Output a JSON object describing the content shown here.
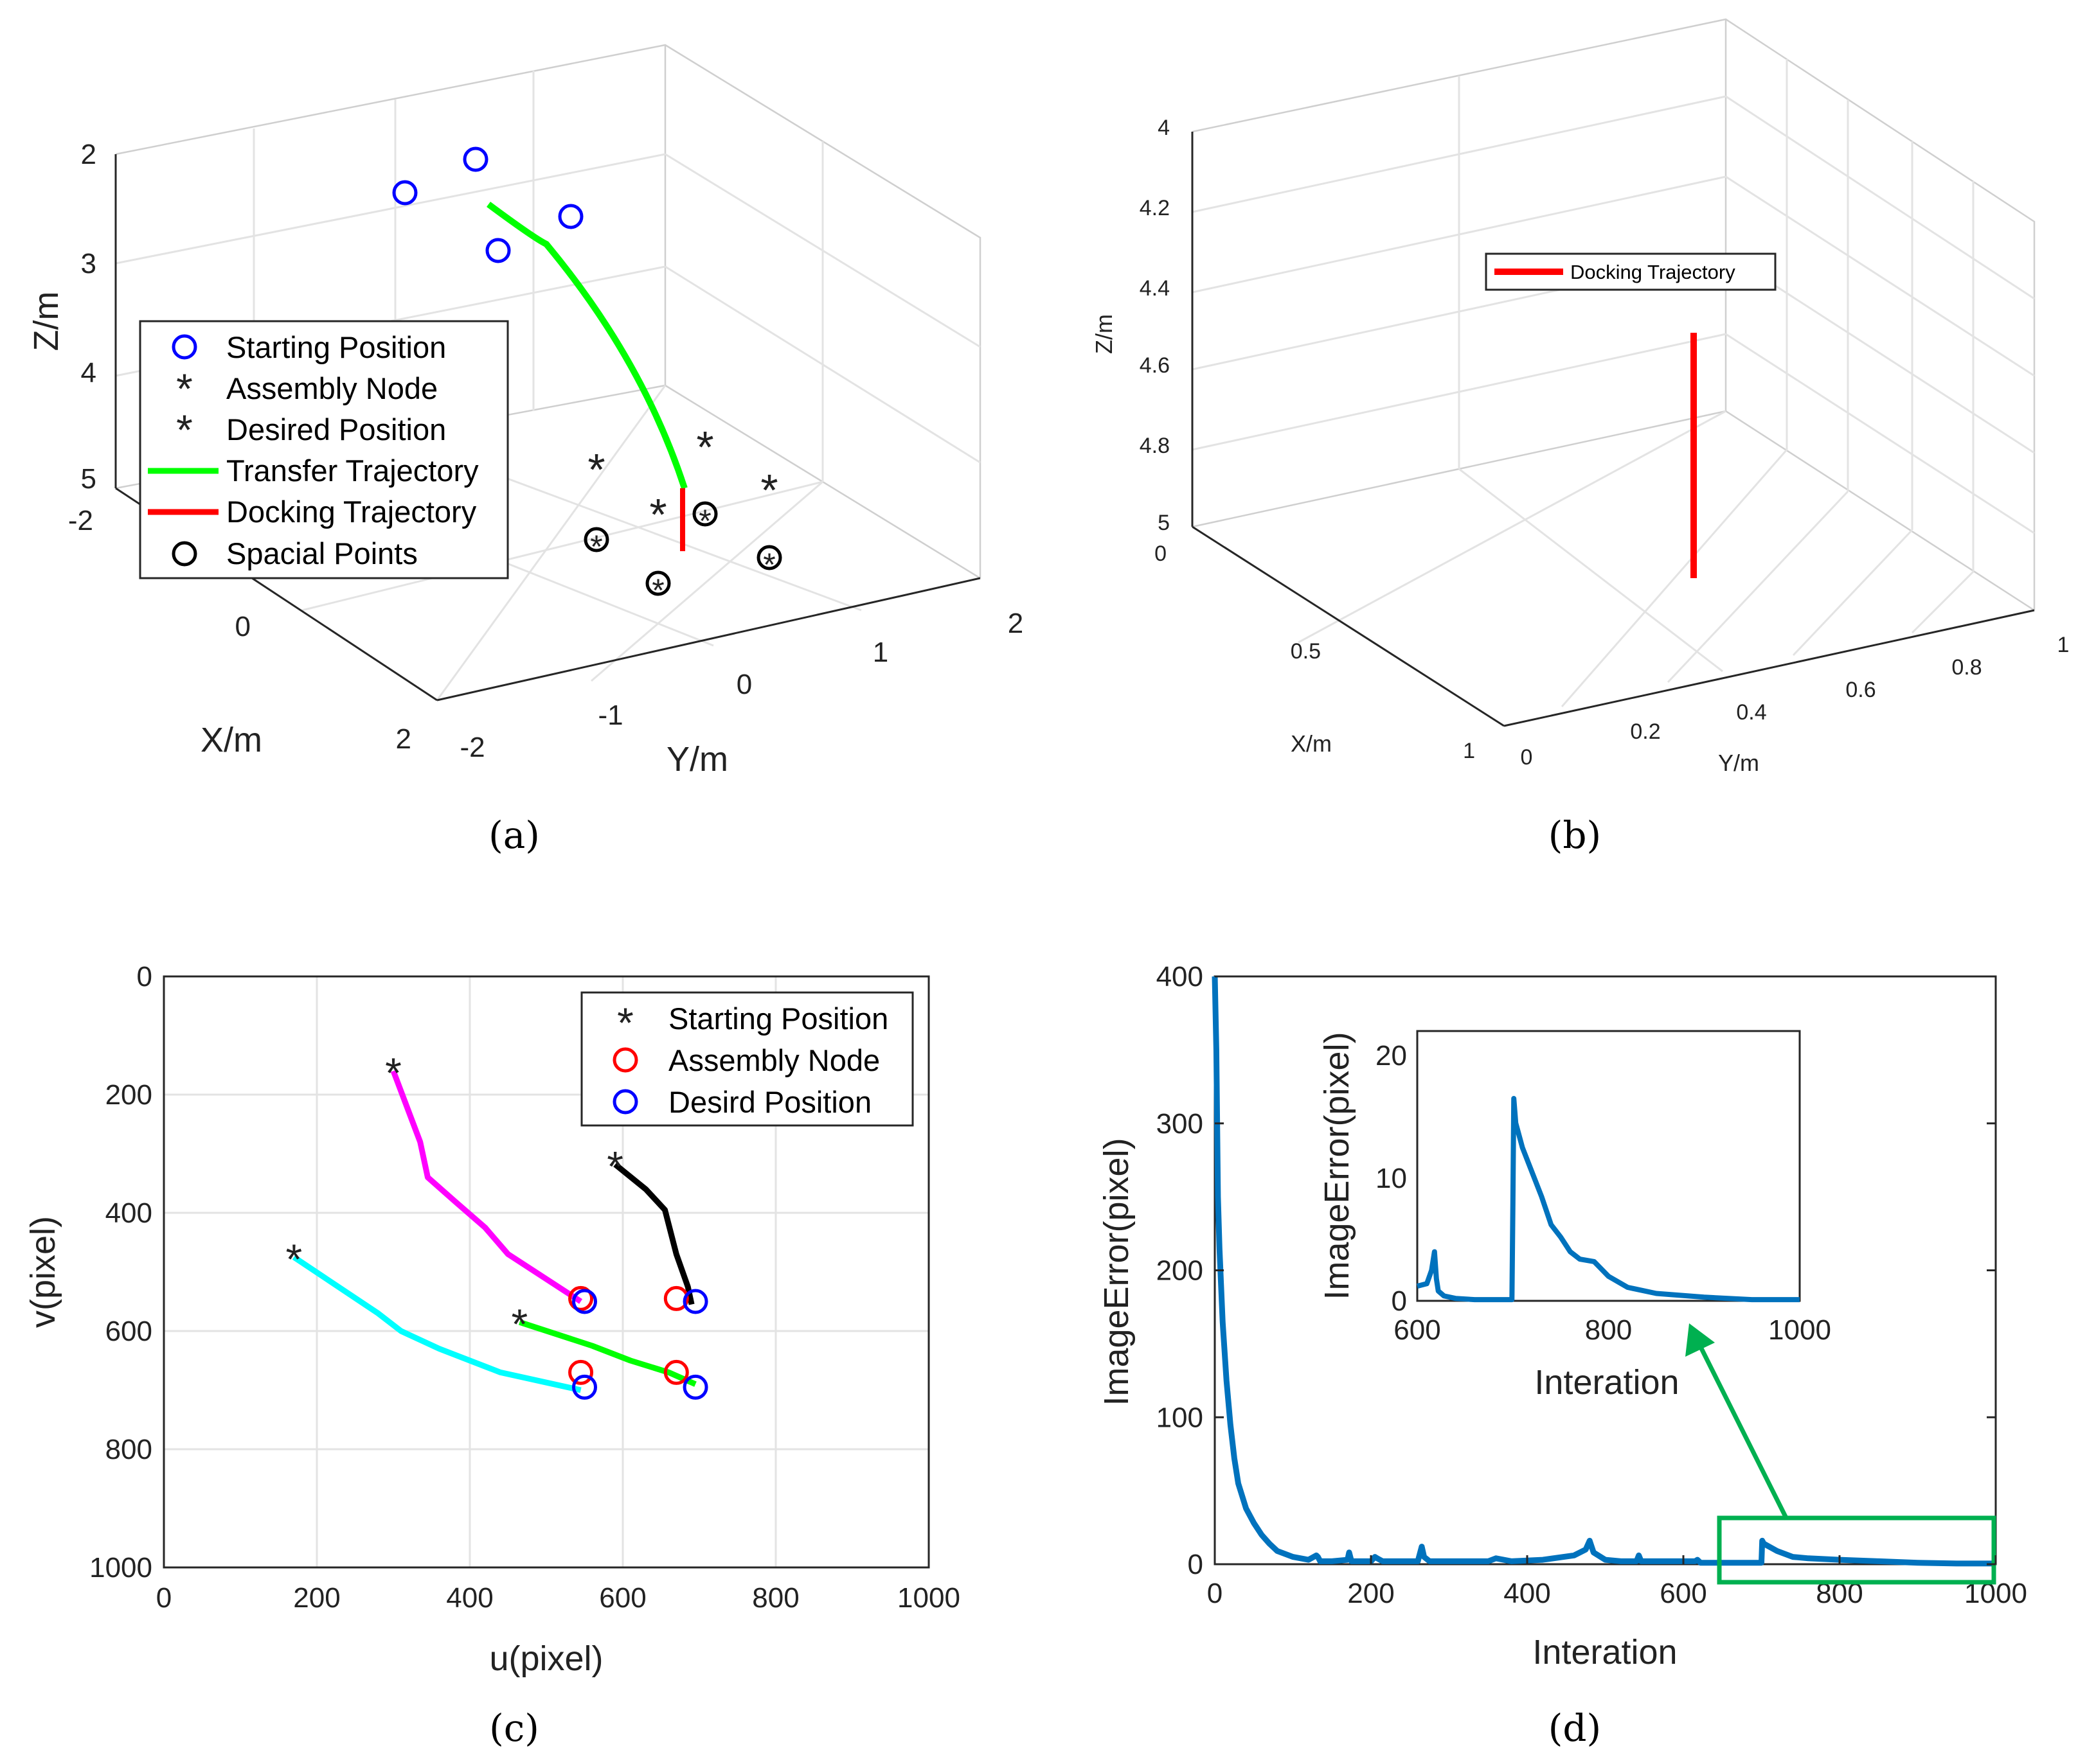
{
  "panels": [
    {
      "id": "a",
      "caption": "(a)",
      "chart_data": {
        "type": "scatter3d",
        "xlabel": "X/m",
        "ylabel": "Y/m",
        "zlabel": "Z/m",
        "x_ticks": [
          "-2",
          "0",
          "2"
        ],
        "y_ticks": [
          "-2",
          "-1",
          "0",
          "1",
          "2"
        ],
        "z_ticks": [
          "2",
          "3",
          "4",
          "5"
        ],
        "legend": [
          "Starting Position",
          "Assembly Node",
          "Desired Position",
          "Transfer Trajectory",
          "Docking Trajectory",
          "Spacial Points"
        ]
      }
    },
    {
      "id": "b",
      "caption": "(b)",
      "chart_data": {
        "type": "line3d",
        "xlabel": "X/m",
        "ylabel": "Y/m",
        "zlabel": "Z/m",
        "x_ticks": [
          "0",
          "0.5",
          "1"
        ],
        "y_ticks": [
          "0",
          "0.2",
          "0.4",
          "0.6",
          "0.8",
          "1"
        ],
        "z_ticks": [
          "4",
          "4.2",
          "4.4",
          "4.6",
          "4.8",
          "5"
        ],
        "legend": [
          "Docking Trajectory"
        ]
      }
    },
    {
      "id": "c",
      "caption": "(c)",
      "chart_data": {
        "type": "line",
        "xlabel": "u(pixel)",
        "ylabel": "v(pixel)",
        "xlim": [
          0,
          1000
        ],
        "ylim": [
          1000,
          0
        ],
        "x_ticks": [
          "0",
          "200",
          "400",
          "600",
          "800",
          "1000"
        ],
        "y_ticks": [
          "0",
          "200",
          "400",
          "600",
          "800",
          "1000"
        ],
        "legend": [
          "Starting Position",
          "Assembly Node",
          "Desird Position"
        ],
        "series": [
          {
            "name": "magenta",
            "color": "#ff00ff",
            "x": [
              300,
              335,
              345,
              380,
              420,
              450,
              545
            ],
            "y": [
              160,
              280,
              340,
              380,
              425,
              470,
              550
            ]
          },
          {
            "name": "black",
            "color": "#000000",
            "x": [
              590,
              630,
              655,
              670,
              685,
              690
            ],
            "y": [
              318,
              360,
              395,
              470,
              525,
              555
            ]
          },
          {
            "name": "cyan",
            "color": "#00ffff",
            "x": [
              170,
              280,
              310,
              360,
              440,
              545
            ],
            "y": [
              475,
              570,
              600,
              630,
              670,
              700
            ]
          },
          {
            "name": "green",
            "color": "#00ff00",
            "x": [
              465,
              560,
              610,
              660,
              695
            ],
            "y": [
              585,
              625,
              650,
              670,
              690
            ]
          }
        ],
        "start_points": {
          "x": [
            300,
            590,
            170,
            465
          ],
          "y": [
            160,
            318,
            475,
            585
          ]
        },
        "assembly_nodes": {
          "x": [
            545,
            670,
            545,
            670
          ],
          "y": [
            545,
            545,
            670,
            670
          ]
        },
        "desired_positions": {
          "x": [
            550,
            695,
            550,
            695
          ],
          "y": [
            550,
            550,
            695,
            695
          ]
        }
      }
    },
    {
      "id": "d",
      "caption": "(d)",
      "chart_data": {
        "type": "line",
        "xlabel": "Interation",
        "ylabel": "ImageError(pixel)",
        "xlim": [
          0,
          1000
        ],
        "ylim": [
          0,
          400
        ],
        "x_ticks": [
          "0",
          "200",
          "400",
          "600",
          "800",
          "1000"
        ],
        "y_ticks": [
          "0",
          "100",
          "200",
          "300",
          "400"
        ],
        "series": [
          {
            "name": "ImageError",
            "color": "#0072bd",
            "x": [
              0,
              2,
              4,
              6,
              10,
              15,
              20,
              25,
              30,
              40,
              50,
              60,
              70,
              80,
              100,
              120,
              130,
              132,
              135,
              150,
              170,
              172,
              175,
              200,
              205,
              208,
              215,
              260,
              265,
              268,
              275,
              300,
              350,
              360,
              380,
              420,
              460,
              475,
              480,
              485,
              500,
              520,
              540,
              543,
              546,
              560,
              600,
              615,
              618,
              622,
              640,
              700,
              701,
              703,
              720,
              740,
              760,
              800,
              850,
              900,
              950,
              1000
            ],
            "y": [
              400,
              350,
              250,
              215,
              165,
              125,
              95,
              72,
              55,
              38,
              28,
              20,
              14,
              9,
              5,
              3,
              6,
              5,
              2,
              2,
              3,
              8,
              2,
              2,
              5,
              4,
              2,
              2,
              12,
              5,
              2,
              2,
              2,
              4,
              2,
              3,
              6,
              10,
              16,
              8,
              3,
              2,
              2,
              6,
              2,
              2,
              2,
              2,
              3,
              1,
              1,
              1,
              16,
              14,
              9,
              5,
              4,
              3,
              2,
              1,
              0.5,
              0.5
            ]
          }
        ],
        "inset": {
          "xlabel": "Interation",
          "ylabel": "ImageError(pixel)",
          "xlim": [
            600,
            1000
          ],
          "ylim": [
            0,
            22
          ],
          "x_ticks": [
            "600",
            "800",
            "1000"
          ],
          "y_ticks": [
            "0",
            "10",
            "20"
          ],
          "series": [
            {
              "name": "ImageError",
              "color": "#0072bd",
              "x": [
                600,
                610,
                615,
                618,
                620,
                622,
                628,
                640,
                660,
                690,
                698,
                699,
                700,
                701,
                703,
                710,
                730,
                740,
                750,
                760,
                770,
                785,
                790,
                800,
                820,
                850,
                900,
                950,
                1000
              ],
              "y": [
                1.2,
                1.4,
                2.5,
                4.0,
                1.8,
                0.8,
                0.4,
                0.2,
                0.1,
                0.1,
                0.1,
                0.1,
                8,
                16.5,
                14.5,
                12.5,
                8.5,
                6.2,
                5.2,
                4.0,
                3.4,
                3.2,
                2.8,
                2.0,
                1.1,
                0.6,
                0.3,
                0.1,
                0.1
              ]
            }
          ]
        }
      }
    }
  ]
}
